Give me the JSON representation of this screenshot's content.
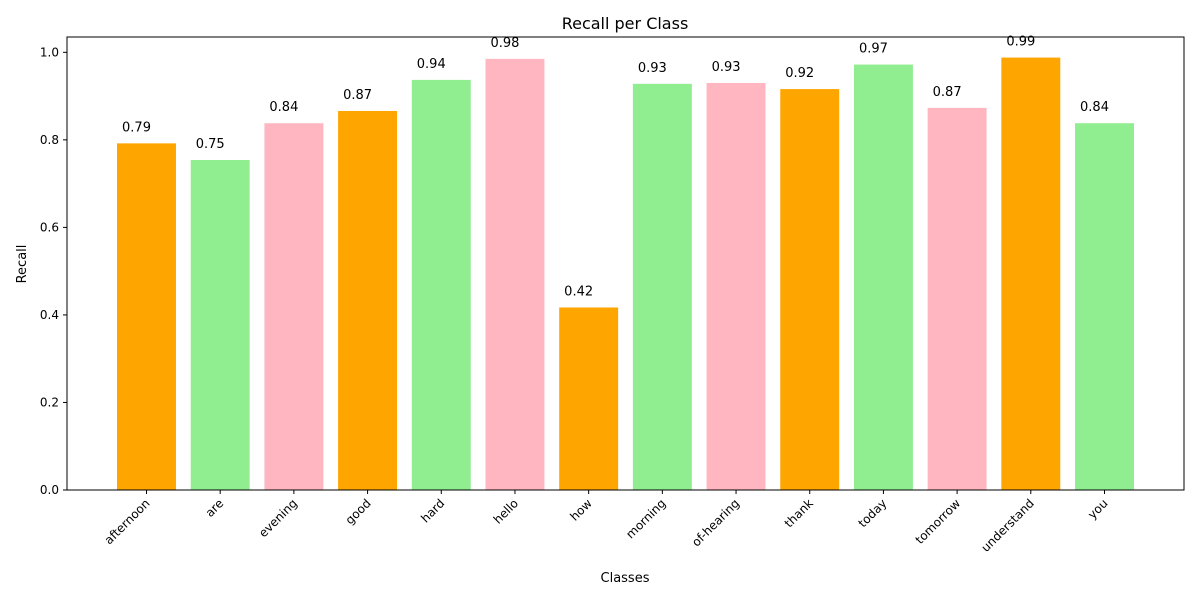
{
  "chart_data": {
    "type": "bar",
    "title": "Recall per Class",
    "xlabel": "Classes",
    "ylabel": "Recall",
    "ylim": [
      0,
      1.035
    ],
    "yticks": [
      0.0,
      0.2,
      0.4,
      0.6,
      0.8,
      1.0
    ],
    "ytick_labels": [
      "0.0",
      "0.2",
      "0.4",
      "0.6",
      "0.8",
      "1.0"
    ],
    "grid": false,
    "categories": [
      "afternoon",
      "are",
      "evening",
      "good",
      "hard",
      "hello",
      "how",
      "morning",
      "of-hearing",
      "thank",
      "today",
      "tomorrow",
      "understand",
      "you"
    ],
    "values": [
      0.792,
      0.754,
      0.838,
      0.866,
      0.937,
      0.985,
      0.417,
      0.928,
      0.93,
      0.916,
      0.972,
      0.873,
      0.988,
      0.838
    ],
    "value_labels": [
      "0.79",
      "0.75",
      "0.84",
      "0.87",
      "0.94",
      "0.98",
      "0.42",
      "0.93",
      "0.93",
      "0.92",
      "0.97",
      "0.87",
      "0.99",
      "0.84"
    ],
    "colors": [
      "#FFA500",
      "#90EE90",
      "#FFB6C1",
      "#FFA500",
      "#90EE90",
      "#FFB6C1",
      "#FFA500",
      "#90EE90",
      "#FFB6C1",
      "#FFA500",
      "#90EE90",
      "#FFB6C1",
      "#FFA500",
      "#90EE90"
    ]
  }
}
